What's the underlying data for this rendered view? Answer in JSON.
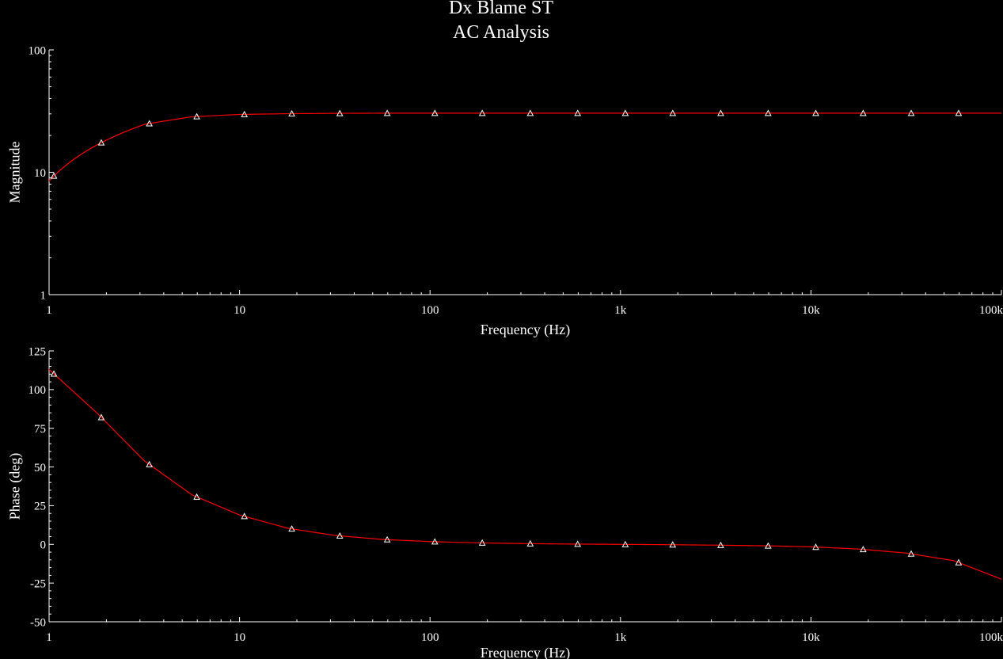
{
  "title_lines": [
    "Dx Blame ST",
    "AC Analysis"
  ],
  "colors": {
    "background": "#000000",
    "axis": "#ffffff",
    "trace": "#ff0000",
    "marker": "#ffffff",
    "text": "#ffffff"
  },
  "chart_data": [
    {
      "type": "line",
      "xscale": "log",
      "yscale": "log",
      "xlim": [
        1,
        100000
      ],
      "ylim": [
        1,
        100
      ],
      "xlabel": "Frequency (Hz)",
      "ylabel": "Magnitude",
      "xticks": [
        1,
        10,
        100,
        1000,
        10000,
        100000
      ],
      "xtick_labels": [
        "1",
        "10",
        "100",
        "1k",
        "10k",
        "100k"
      ],
      "yticks": [
        1,
        10,
        100
      ],
      "ytick_labels": [
        "1",
        "10",
        "100"
      ],
      "grid": false,
      "marker": "triangle",
      "series": [
        {
          "x": [
            1,
            1.78,
            3.16,
            5.62,
            10,
            17.8,
            31.6,
            56.2,
            100,
            178,
            316,
            562,
            1000,
            1780,
            3160,
            5620,
            10000,
            17800,
            31600,
            56200,
            100000
          ],
          "values": [
            8.5,
            16.7,
            24.6,
            28.4,
            29.7,
            30.1,
            30.3,
            30.4,
            30.4,
            30.4,
            30.4,
            30.4,
            30.4,
            30.4,
            30.4,
            30.4,
            30.4,
            30.4,
            30.4,
            30.4,
            30.4
          ]
        }
      ],
      "markers_x": [
        1.06,
        1.88,
        3.36,
        5.96,
        10.6,
        18.8,
        33.6,
        59.6,
        106,
        188,
        336,
        596,
        1060,
        1880,
        3360,
        5960,
        10600,
        18800,
        33600,
        59600
      ]
    },
    {
      "type": "line",
      "xscale": "log",
      "yscale": "linear",
      "xlim": [
        1,
        100000
      ],
      "ylim": [
        -50,
        125
      ],
      "xlabel": "Frequency (Hz)",
      "ylabel": "Phase (deg)",
      "xticks": [
        1,
        10,
        100,
        1000,
        10000,
        100000
      ],
      "xtick_labels": [
        "1",
        "10",
        "100",
        "1k",
        "10k",
        "100k"
      ],
      "yticks": [
        125,
        100,
        75,
        50,
        25,
        0,
        -25,
        -50
      ],
      "ytick_labels": [
        "125",
        "100",
        "75",
        "50",
        "25",
        "0",
        "-25",
        "-50"
      ],
      "grid": false,
      "marker": "triangle",
      "series": [
        {
          "x": [
            1,
            1.78,
            3.16,
            5.62,
            10,
            17.8,
            31.6,
            56.2,
            100,
            178,
            316,
            562,
            1000,
            1780,
            3160,
            5620,
            10000,
            17800,
            31600,
            56200,
            100000
          ],
          "values": [
            113,
            85,
            54,
            32,
            19,
            10.5,
            5.8,
            3.2,
            1.8,
            1.0,
            0.5,
            0.2,
            0,
            -0.2,
            -0.5,
            -0.9,
            -1.6,
            -3.0,
            -5.6,
            -10.5,
            -22.5
          ]
        }
      ],
      "markers_x": [
        1.06,
        1.88,
        3.36,
        5.96,
        10.6,
        18.8,
        33.6,
        59.6,
        106,
        188,
        336,
        596,
        1060,
        1880,
        3360,
        5960,
        10600,
        18800,
        33600,
        59600
      ]
    }
  ]
}
